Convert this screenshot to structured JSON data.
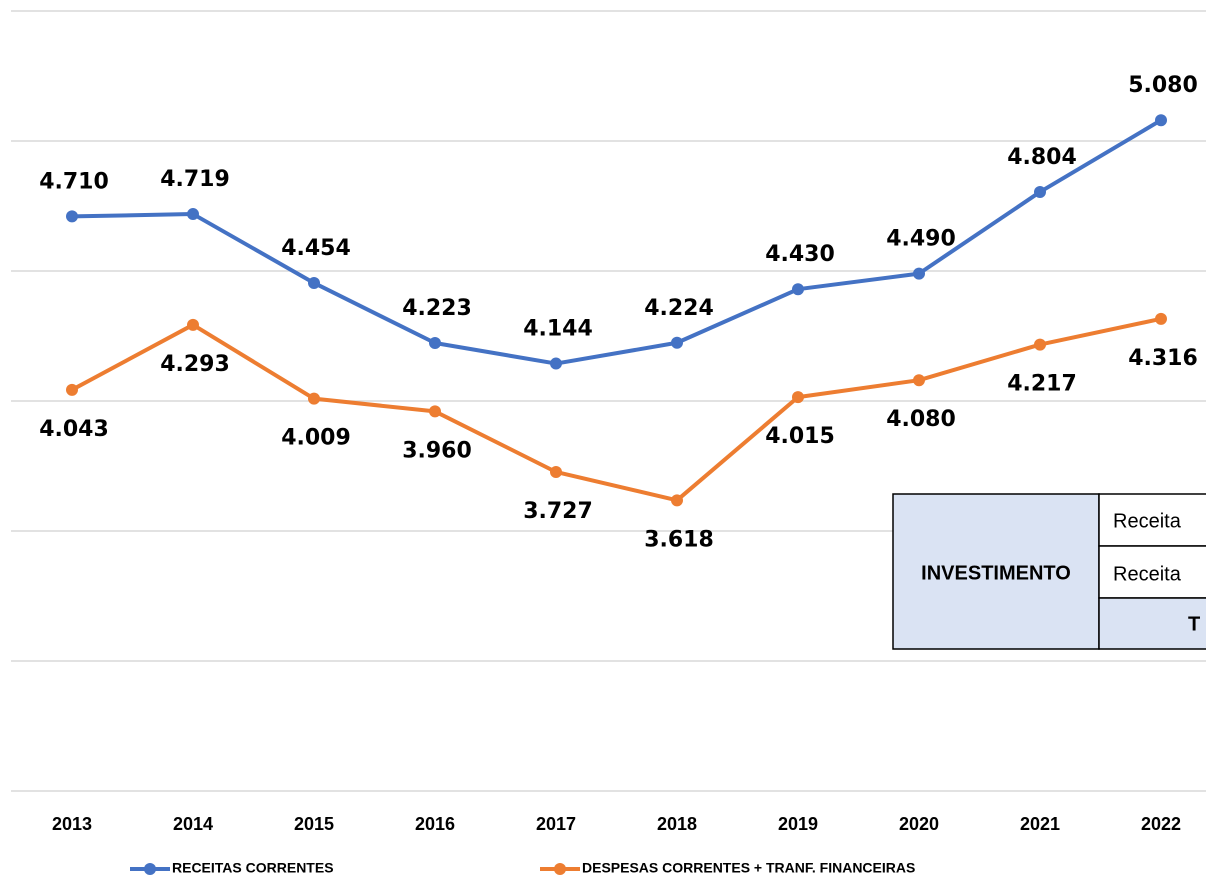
{
  "chart_data": {
    "type": "line",
    "categories": [
      "2013",
      "2014",
      "2015",
      "2016",
      "2017",
      "2018",
      "2019",
      "2020",
      "2021",
      "2022"
    ],
    "series": [
      {
        "name": "RECEITAS CORRENTES",
        "color": "#4472c4",
        "values": [
          4710,
          4719,
          4454,
          4223,
          4144,
          4224,
          4430,
          4490,
          4804,
          5080
        ],
        "value_labels": [
          "4.710",
          "4.719",
          "4.454",
          "4.223",
          "4.144",
          "4.224",
          "4.430",
          "4.490",
          "4.804",
          "5.080"
        ]
      },
      {
        "name": "DESPESAS CORRENTES + TRANF. FINANCEIRAS",
        "color": "#ed7d31",
        "values": [
          4043,
          4293,
          4009,
          3960,
          3727,
          3618,
          4015,
          4080,
          4217,
          4316
        ],
        "value_labels": [
          "4.043",
          "4.293",
          "4.009",
          "3.960",
          "3.727",
          "3.618",
          "4.015",
          "4.080",
          "4.217",
          "4.316"
        ]
      }
    ],
    "ylim": [
      2500,
      5500
    ],
    "yticks": [
      2500,
      3000,
      3500,
      4000,
      4500,
      5000,
      5500
    ],
    "grid": true
  },
  "table": {
    "rows": [
      [
        "INVESTIMENTO",
        "Receita"
      ],
      [
        "Receita"
      ],
      [
        "T"
      ]
    ]
  }
}
